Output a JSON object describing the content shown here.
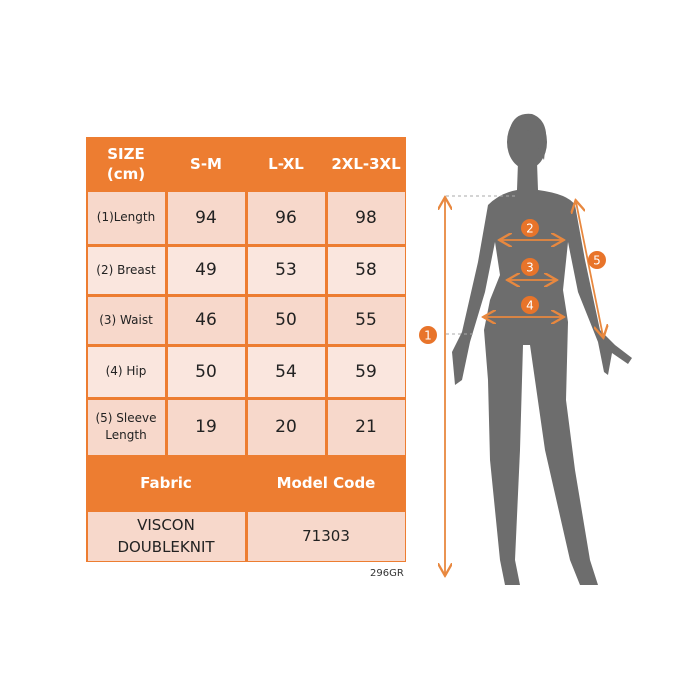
{
  "table": {
    "header": [
      "SIZE\n(cm)",
      "S-M",
      "L-XL",
      "2XL-3XL"
    ],
    "rows": [
      {
        "label": "(1)Length",
        "values": [
          "94",
          "96",
          "98"
        ]
      },
      {
        "label": "(2) Breast",
        "values": [
          "49",
          "53",
          "58"
        ]
      },
      {
        "label": "(3) Waist",
        "values": [
          "46",
          "50",
          "55"
        ]
      },
      {
        "label": "(4) Hip",
        "values": [
          "50",
          "54",
          "59"
        ]
      },
      {
        "label": "(5) Sleeve\nLength",
        "values": [
          "19",
          "20",
          "21"
        ]
      }
    ],
    "footer_header": [
      "Fabric",
      "Model Code"
    ],
    "footer_values": [
      "VISCON\nDOUBLEKNIT",
      "71303"
    ]
  },
  "product_code": "296GR",
  "diagram": {
    "markers": [
      "1",
      "2",
      "3",
      "4",
      "5"
    ]
  },
  "colors": {
    "accent": "#ed7d31",
    "cell": "#f7d8cb",
    "silhouette": "#6d6d6d"
  }
}
